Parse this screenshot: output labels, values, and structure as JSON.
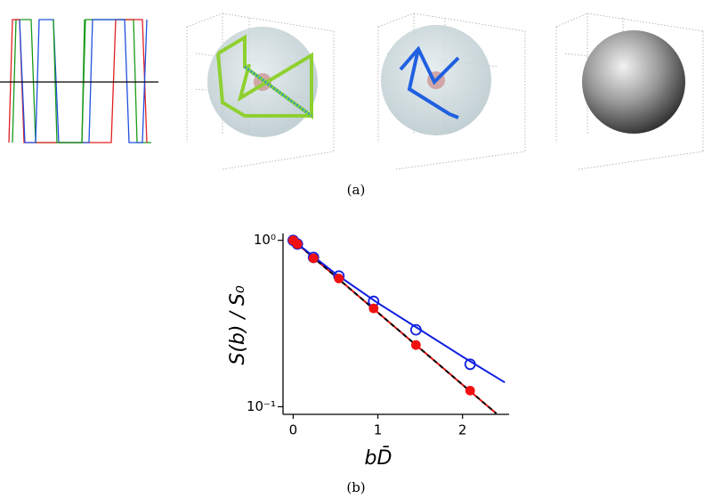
{
  "captions": [
    "(a)",
    "(b)"
  ],
  "chart_data": {
    "type": "line",
    "x_label": "bD̄",
    "y_label": "S(b) / S₀",
    "xlim": [
      -0.12,
      2.55
    ],
    "xticks": [
      0,
      1,
      2
    ],
    "ylim": [
      0.09,
      1.1
    ],
    "log_y": true,
    "yticks": [
      {
        "value": 0.1,
        "label": "10⁻¹"
      },
      {
        "value": 1,
        "label": "10⁰"
      }
    ],
    "series": [
      {
        "mode": "line",
        "color": "#e01010",
        "x": [
          0,
          2.4
        ],
        "values": [
          1,
          0.091
        ]
      },
      {
        "mode": "dashed",
        "color": "#000000",
        "x": [
          0,
          2.4
        ],
        "values": [
          1,
          0.091
        ]
      },
      {
        "mode": "line",
        "color": "#1020e0",
        "x": [
          0,
          0.5,
          1,
          1.5,
          2,
          2.5
        ],
        "values": [
          1,
          0.63,
          0.42,
          0.29,
          0.2,
          0.14
        ]
      },
      {
        "mode": "markers",
        "filled": false,
        "color": "#1020e0",
        "x": [
          0,
          0.05,
          0.24,
          0.54,
          0.95,
          1.45,
          2.09
        ],
        "values": [
          1,
          0.95,
          0.79,
          0.61,
          0.43,
          0.29,
          0.18
        ]
      },
      {
        "mode": "markers",
        "filled": true,
        "color": "#f01010",
        "x": [
          0,
          0.05,
          0.24,
          0.54,
          0.95,
          1.45,
          2.09
        ],
        "values": [
          1,
          0.95,
          0.78,
          0.59,
          0.39,
          0.235,
          0.125
        ]
      }
    ]
  }
}
